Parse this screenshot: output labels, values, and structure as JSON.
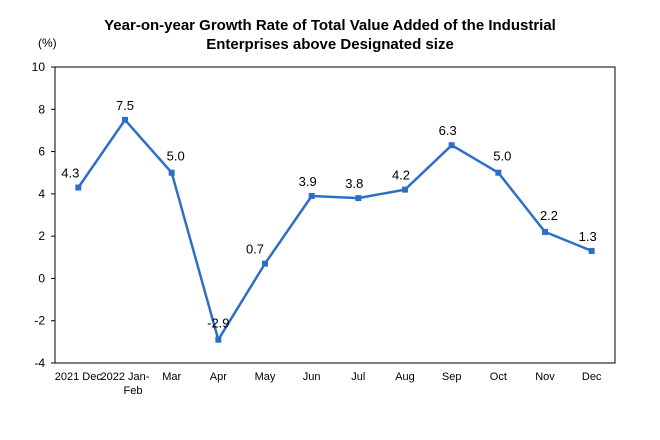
{
  "chart_data": {
    "type": "line",
    "title_line1": "Year-on-year Growth Rate of Total Value Added of the Industrial",
    "title_line2": "Enterprises above Designated size",
    "unit_label": "(%)",
    "categories": [
      [
        "2021",
        "Dec"
      ],
      [
        "2022",
        "Jan-",
        "Feb"
      ],
      [
        "Mar"
      ],
      [
        "Apr"
      ],
      [
        "May"
      ],
      [
        "Jun"
      ],
      [
        "Jul"
      ],
      [
        "Aug"
      ],
      [
        "Sep"
      ],
      [
        "Oct"
      ],
      [
        "Nov"
      ],
      [
        "Dec"
      ]
    ],
    "values": [
      4.3,
      7.5,
      5.0,
      -2.9,
      0.7,
      3.9,
      3.8,
      4.2,
      6.3,
      5.0,
      2.2,
      1.3
    ],
    "value_labels": [
      "4.3",
      "7.5",
      "5.0",
      "-2.9",
      "0.7",
      "3.9",
      "3.8",
      "4.2",
      "6.3",
      "5.0",
      "2.2",
      "1.3"
    ],
    "ylim": [
      -4,
      10
    ],
    "yticks": [
      -4,
      -2,
      0,
      2,
      4,
      6,
      8,
      10
    ],
    "grid": false,
    "line_color": "#2E6FC6",
    "marker_color": "#2E6FC6"
  }
}
